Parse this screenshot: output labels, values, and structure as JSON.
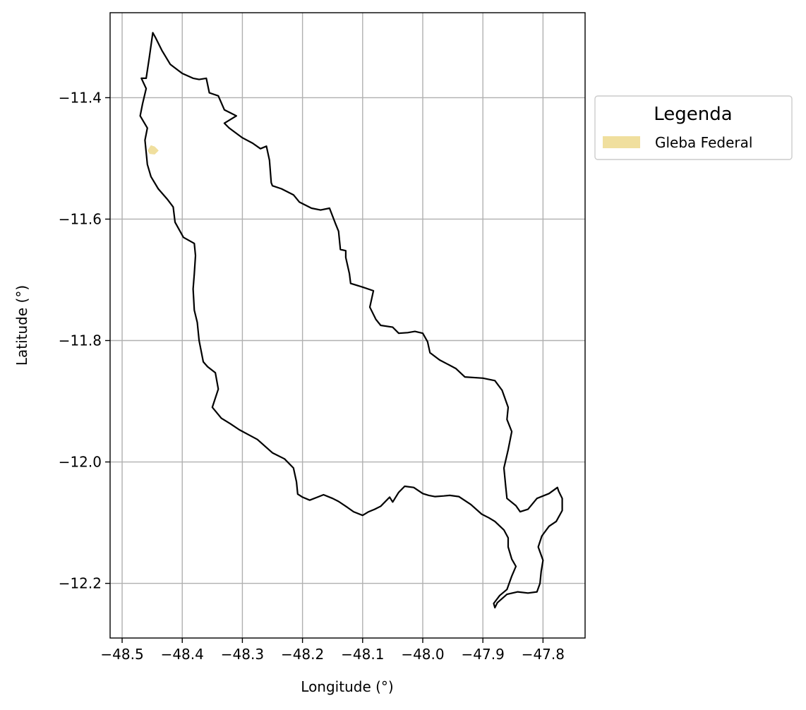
{
  "chart_data": {
    "type": "map",
    "title": "",
    "xlabel": "Longitude (°)",
    "ylabel": "Latitude (°)",
    "xlim": [
      -48.52,
      -47.73
    ],
    "ylim": [
      -12.29,
      -11.26
    ],
    "grid": true,
    "x_ticks": [
      {
        "value": -48.5,
        "label": "−48.5"
      },
      {
        "value": -48.4,
        "label": "−48.4"
      },
      {
        "value": -48.3,
        "label": "−48.3"
      },
      {
        "value": -48.2,
        "label": "−48.2"
      },
      {
        "value": -48.1,
        "label": "−48.1"
      },
      {
        "value": -48.0,
        "label": "−48.0"
      },
      {
        "value": -47.9,
        "label": "−47.9"
      },
      {
        "value": -47.8,
        "label": "−47.8"
      }
    ],
    "y_ticks": [
      {
        "value": -11.4,
        "label": "−11.4"
      },
      {
        "value": -11.6,
        "label": "−11.6"
      },
      {
        "value": -11.8,
        "label": "−11.8"
      },
      {
        "value": -12.0,
        "label": "−12.0"
      },
      {
        "value": -12.2,
        "label": "−12.2"
      }
    ],
    "legend": {
      "title": "Legenda",
      "placement": "outside-right-top",
      "entries": [
        {
          "label": "Gleba Federal",
          "color": "#f0df9e"
        }
      ]
    },
    "boundary": {
      "stroke": "#000000",
      "points": [
        [
          -48.46,
          -11.368
        ],
        [
          -48.455,
          -11.335
        ],
        [
          -48.449,
          -11.293
        ],
        [
          -48.445,
          -11.3
        ],
        [
          -48.434,
          -11.322
        ],
        [
          -48.42,
          -11.345
        ],
        [
          -48.4,
          -11.36
        ],
        [
          -48.382,
          -11.368
        ],
        [
          -48.372,
          -11.37
        ],
        [
          -48.36,
          -11.368
        ],
        [
          -48.355,
          -11.392
        ],
        [
          -48.34,
          -11.397
        ],
        [
          -48.33,
          -11.42
        ],
        [
          -48.32,
          -11.425
        ],
        [
          -48.31,
          -11.43
        ],
        [
          -48.33,
          -11.442
        ],
        [
          -48.322,
          -11.45
        ],
        [
          -48.3,
          -11.466
        ],
        [
          -48.283,
          -11.475
        ],
        [
          -48.27,
          -11.484
        ],
        [
          -48.26,
          -11.48
        ],
        [
          -48.255,
          -11.503
        ],
        [
          -48.252,
          -11.54
        ],
        [
          -48.25,
          -11.545
        ],
        [
          -48.235,
          -11.55
        ],
        [
          -48.215,
          -11.56
        ],
        [
          -48.205,
          -11.572
        ],
        [
          -48.185,
          -11.582
        ],
        [
          -48.17,
          -11.585
        ],
        [
          -48.155,
          -11.582
        ],
        [
          -48.145,
          -11.608
        ],
        [
          -48.14,
          -11.62
        ],
        [
          -48.137,
          -11.65
        ],
        [
          -48.128,
          -11.652
        ],
        [
          -48.128,
          -11.663
        ],
        [
          -48.122,
          -11.69
        ],
        [
          -48.12,
          -11.706
        ],
        [
          -48.1,
          -11.712
        ],
        [
          -48.082,
          -11.718
        ],
        [
          -48.088,
          -11.745
        ],
        [
          -48.078,
          -11.765
        ],
        [
          -48.07,
          -11.775
        ],
        [
          -48.05,
          -11.778
        ],
        [
          -48.04,
          -11.788
        ],
        [
          -48.025,
          -11.787
        ],
        [
          -48.013,
          -11.785
        ],
        [
          -48.0,
          -11.788
        ],
        [
          -47.992,
          -11.802
        ],
        [
          -47.988,
          -11.82
        ],
        [
          -47.972,
          -11.832
        ],
        [
          -47.945,
          -11.846
        ],
        [
          -47.93,
          -11.86
        ],
        [
          -47.9,
          -11.862
        ],
        [
          -47.88,
          -11.866
        ],
        [
          -47.868,
          -11.882
        ],
        [
          -47.858,
          -11.91
        ],
        [
          -47.86,
          -11.93
        ],
        [
          -47.852,
          -11.95
        ],
        [
          -47.858,
          -11.98
        ],
        [
          -47.865,
          -12.01
        ],
        [
          -47.862,
          -12.04
        ],
        [
          -47.86,
          -12.06
        ],
        [
          -47.845,
          -12.072
        ],
        [
          -47.838,
          -12.082
        ],
        [
          -47.825,
          -12.078
        ],
        [
          -47.81,
          -12.06
        ],
        [
          -47.79,
          -12.052
        ],
        [
          -47.776,
          -12.042
        ],
        [
          -47.774,
          -12.048
        ],
        [
          -47.768,
          -12.06
        ],
        [
          -47.768,
          -12.08
        ],
        [
          -47.778,
          -12.098
        ],
        [
          -47.79,
          -12.106
        ],
        [
          -47.802,
          -12.122
        ],
        [
          -47.808,
          -12.14
        ],
        [
          -47.8,
          -12.162
        ],
        [
          -47.803,
          -12.18
        ],
        [
          -47.805,
          -12.2
        ],
        [
          -47.81,
          -12.214
        ],
        [
          -47.825,
          -12.216
        ],
        [
          -47.842,
          -12.214
        ],
        [
          -47.86,
          -12.218
        ],
        [
          -47.876,
          -12.232
        ],
        [
          -47.88,
          -12.24
        ],
        [
          -47.882,
          -12.233
        ],
        [
          -47.872,
          -12.22
        ],
        [
          -47.86,
          -12.21
        ],
        [
          -47.852,
          -12.188
        ],
        [
          -47.845,
          -12.172
        ],
        [
          -47.852,
          -12.16
        ],
        [
          -47.858,
          -12.14
        ],
        [
          -47.858,
          -12.125
        ],
        [
          -47.865,
          -12.112
        ],
        [
          -47.88,
          -12.098
        ],
        [
          -47.89,
          -12.092
        ],
        [
          -47.902,
          -12.086
        ],
        [
          -47.92,
          -12.07
        ],
        [
          -47.94,
          -12.057
        ],
        [
          -47.955,
          -12.055
        ],
        [
          -47.965,
          -12.056
        ],
        [
          -47.98,
          -12.057
        ],
        [
          -47.99,
          -12.055
        ],
        [
          -48.0,
          -12.052
        ],
        [
          -48.015,
          -12.042
        ],
        [
          -48.03,
          -12.04
        ],
        [
          -48.04,
          -12.05
        ],
        [
          -48.05,
          -12.066
        ],
        [
          -48.055,
          -12.058
        ],
        [
          -48.07,
          -12.073
        ],
        [
          -48.08,
          -12.078
        ],
        [
          -48.09,
          -12.082
        ],
        [
          -48.1,
          -12.088
        ],
        [
          -48.115,
          -12.082
        ],
        [
          -48.125,
          -12.075
        ],
        [
          -48.14,
          -12.065
        ],
        [
          -48.15,
          -12.06
        ],
        [
          -48.165,
          -12.054
        ],
        [
          -48.175,
          -12.058
        ],
        [
          -48.188,
          -12.063
        ],
        [
          -48.2,
          -12.058
        ],
        [
          -48.208,
          -12.053
        ],
        [
          -48.21,
          -12.033
        ],
        [
          -48.215,
          -12.01
        ],
        [
          -48.23,
          -11.995
        ],
        [
          -48.25,
          -11.985
        ],
        [
          -48.275,
          -11.963
        ],
        [
          -48.29,
          -11.955
        ],
        [
          -48.305,
          -11.947
        ],
        [
          -48.32,
          -11.937
        ],
        [
          -48.335,
          -11.928
        ],
        [
          -48.35,
          -11.91
        ],
        [
          -48.34,
          -11.88
        ],
        [
          -48.345,
          -11.853
        ],
        [
          -48.358,
          -11.843
        ],
        [
          -48.365,
          -11.835
        ],
        [
          -48.372,
          -11.8
        ],
        [
          -48.375,
          -11.77
        ],
        [
          -48.38,
          -11.75
        ],
        [
          -48.382,
          -11.715
        ],
        [
          -48.38,
          -11.69
        ],
        [
          -48.378,
          -11.66
        ],
        [
          -48.38,
          -11.64
        ],
        [
          -48.398,
          -11.63
        ],
        [
          -48.412,
          -11.605
        ],
        [
          -48.415,
          -11.58
        ],
        [
          -48.425,
          -11.567
        ],
        [
          -48.44,
          -11.55
        ],
        [
          -48.452,
          -11.53
        ],
        [
          -48.458,
          -11.51
        ],
        [
          -48.46,
          -11.49
        ],
        [
          -48.462,
          -11.47
        ],
        [
          -48.458,
          -11.45
        ],
        [
          -48.47,
          -11.43
        ],
        [
          -48.466,
          -11.41
        ],
        [
          -48.46,
          -11.385
        ],
        [
          -48.468,
          -11.368
        ]
      ]
    },
    "polygons": [
      {
        "name": "Gleba Federal",
        "fill": "#f0df9e",
        "points": [
          [
            -48.457,
            -11.487
          ],
          [
            -48.452,
            -11.479
          ],
          [
            -48.446,
            -11.481
          ],
          [
            -48.44,
            -11.487
          ],
          [
            -48.446,
            -11.493
          ],
          [
            -48.454,
            -11.492
          ]
        ]
      }
    ]
  }
}
